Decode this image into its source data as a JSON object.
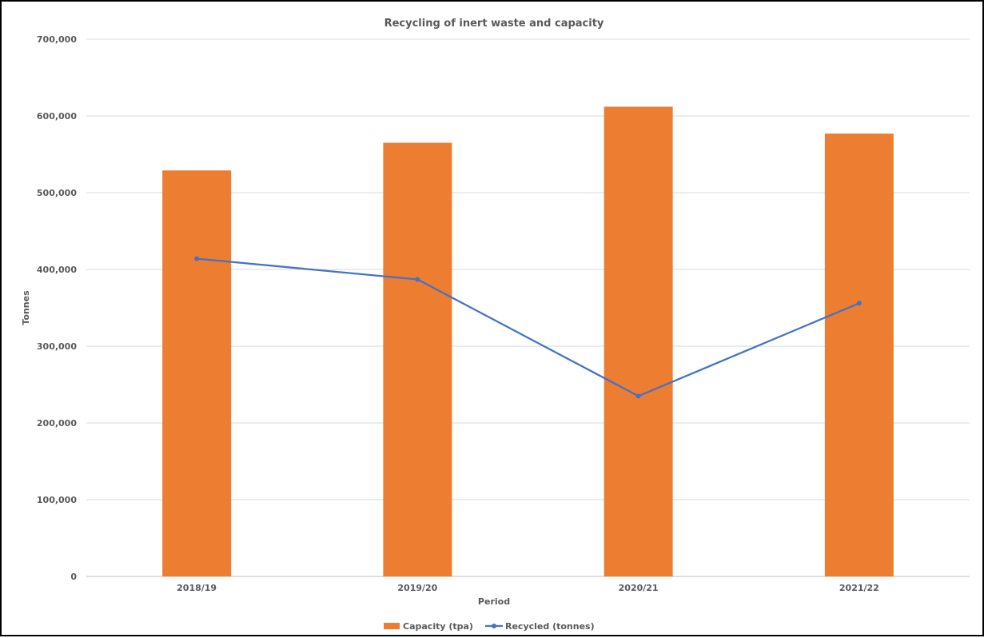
{
  "chart_data": {
    "type": "bar",
    "title": "Recycling of inert waste and capacity",
    "xlabel": "Period",
    "ylabel": "Tonnes",
    "categories": [
      "2018/19",
      "2019/20",
      "2020/21",
      "2021/22"
    ],
    "ylim": [
      0,
      700000
    ],
    "yticks": [
      0,
      100000,
      200000,
      300000,
      400000,
      500000,
      600000,
      700000
    ],
    "ytick_labels": [
      "0",
      "100,000",
      "200,000",
      "300,000",
      "400,000",
      "500,000",
      "600,000",
      "700,000"
    ],
    "grid": true,
    "legend_position": "bottom",
    "series": [
      {
        "name": "Capacity (tpa)",
        "type": "bar",
        "color": "#ED7D31",
        "values": [
          529000,
          565000,
          612000,
          577000
        ]
      },
      {
        "name": "Recycled (tonnes)",
        "type": "line",
        "color": "#4472C4",
        "values": [
          414000,
          387000,
          235000,
          356000
        ]
      }
    ]
  }
}
